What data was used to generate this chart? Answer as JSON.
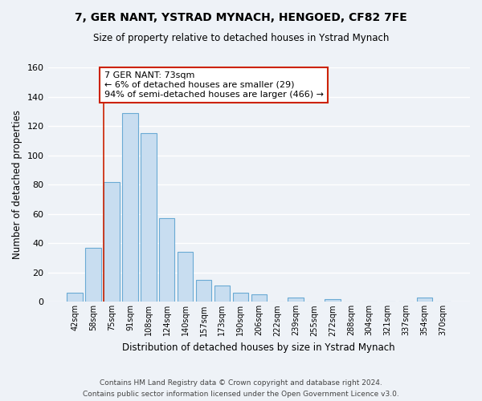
{
  "title": "7, GER NANT, YSTRAD MYNACH, HENGOED, CF82 7FE",
  "subtitle": "Size of property relative to detached houses in Ystrad Mynach",
  "xlabel": "Distribution of detached houses by size in Ystrad Mynach",
  "ylabel": "Number of detached properties",
  "bar_color": "#c8ddf0",
  "bar_edge_color": "#6aaad4",
  "categories": [
    "42sqm",
    "58sqm",
    "75sqm",
    "91sqm",
    "108sqm",
    "124sqm",
    "140sqm",
    "157sqm",
    "173sqm",
    "190sqm",
    "206sqm",
    "222sqm",
    "239sqm",
    "255sqm",
    "272sqm",
    "288sqm",
    "304sqm",
    "321sqm",
    "337sqm",
    "354sqm",
    "370sqm"
  ],
  "values": [
    6,
    37,
    82,
    129,
    115,
    57,
    34,
    15,
    11,
    6,
    5,
    0,
    3,
    0,
    2,
    0,
    0,
    0,
    0,
    3,
    0
  ],
  "ylim": [
    0,
    160
  ],
  "yticks": [
    0,
    20,
    40,
    60,
    80,
    100,
    120,
    140,
    160
  ],
  "annotation_title": "7 GER NANT: 73sqm",
  "annotation_line1": "← 6% of detached houses are smaller (29)",
  "annotation_line2": "94% of semi-detached houses are larger (466) →",
  "vline_color": "#cc2200",
  "annotation_box_color": "#ffffff",
  "annotation_box_edge": "#cc2200",
  "footer_line1": "Contains HM Land Registry data © Crown copyright and database right 2024.",
  "footer_line2": "Contains public sector information licensed under the Open Government Licence v3.0.",
  "background_color": "#eef2f7",
  "grid_color": "#ffffff",
  "grid_bg_color": "#e8eef5"
}
